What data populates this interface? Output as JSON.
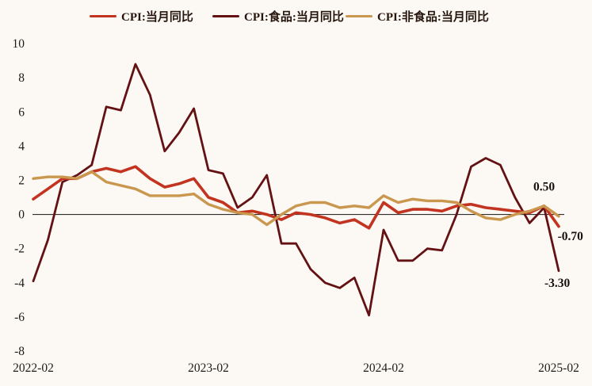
{
  "colors": {
    "background": "#fcf9f4",
    "axis_text": "#1c1c1c",
    "zero_line": "#2e2e2e",
    "annotation_text": "#17100a"
  },
  "chart_data": {
    "type": "line",
    "title": "",
    "xlabel": "",
    "ylabel": "",
    "legend_position": "top",
    "grid": false,
    "zero_line": true,
    "ylim": [
      -8,
      10
    ],
    "y_ticks": [
      10,
      8,
      6,
      4,
      2,
      0,
      -2,
      -4,
      -6,
      -8
    ],
    "x": [
      "2022-02",
      "2022-03",
      "2022-04",
      "2022-05",
      "2022-06",
      "2022-07",
      "2022-08",
      "2022-09",
      "2022-10",
      "2022-11",
      "2022-12",
      "2023-01",
      "2023-02",
      "2023-03",
      "2023-04",
      "2023-05",
      "2023-06",
      "2023-07",
      "2023-08",
      "2023-09",
      "2023-10",
      "2023-11",
      "2023-12",
      "2024-01",
      "2024-02",
      "2024-03",
      "2024-04",
      "2024-05",
      "2024-06",
      "2024-07",
      "2024-08",
      "2024-09",
      "2024-10",
      "2024-11",
      "2024-12",
      "2025-01",
      "2025-02"
    ],
    "x_ticks": [
      {
        "label": "2022-02",
        "month_index": 0
      },
      {
        "label": "2023-02",
        "month_index": 12
      },
      {
        "label": "2024-02",
        "month_index": 24
      },
      {
        "label": "2025-02",
        "month_index": 36
      }
    ],
    "series": [
      {
        "id": "cpi",
        "name": "CPI:当月同比",
        "color": "#c23320",
        "stroke_width": 3.6,
        "values": [
          0.9,
          1.5,
          2.1,
          2.1,
          2.5,
          2.7,
          2.5,
          2.8,
          2.1,
          1.6,
          1.8,
          2.1,
          1.0,
          0.7,
          0.1,
          0.2,
          0.0,
          -0.3,
          0.1,
          0.0,
          -0.2,
          -0.5,
          -0.3,
          -0.8,
          0.7,
          0.1,
          0.3,
          0.3,
          0.2,
          0.5,
          0.6,
          0.4,
          0.3,
          0.2,
          0.1,
          0.5,
          -0.7
        ]
      },
      {
        "id": "cpi-food",
        "name": "CPI:食品:当月同比",
        "color": "#641114",
        "stroke_width": 2.8,
        "values": [
          -3.9,
          -1.5,
          1.9,
          2.3,
          2.9,
          6.3,
          6.1,
          8.8,
          7.0,
          3.7,
          4.8,
          6.2,
          2.6,
          2.4,
          0.4,
          1.0,
          2.3,
          -1.7,
          -1.7,
          -3.2,
          -4.0,
          -4.3,
          -3.7,
          -5.9,
          -0.9,
          -2.7,
          -2.7,
          -2.0,
          -2.1,
          0.0,
          2.8,
          3.3,
          2.9,
          1.0,
          -0.5,
          0.4,
          -3.3
        ]
      },
      {
        "id": "cpi-nonfood",
        "name": "CPI:非食品:当月同比",
        "color": "#c9974d",
        "stroke_width": 3.4,
        "values": [
          2.1,
          2.2,
          2.2,
          2.1,
          2.5,
          1.9,
          1.7,
          1.5,
          1.1,
          1.1,
          1.1,
          1.2,
          0.6,
          0.3,
          0.1,
          0.0,
          -0.6,
          0.0,
          0.5,
          0.7,
          0.7,
          0.4,
          0.5,
          0.4,
          1.1,
          0.7,
          0.9,
          0.8,
          0.8,
          0.7,
          0.2,
          -0.2,
          -0.3,
          0.0,
          0.2,
          0.5,
          -0.1
        ]
      }
    ],
    "annotations": [
      {
        "text": "0.50",
        "x_month": 35.0,
        "y_value": 1.62
      },
      {
        "text": "-0.70",
        "x_month": 36.8,
        "y_value": -1.28
      },
      {
        "text": "-3.30",
        "x_month": 35.9,
        "y_value": -4.0
      }
    ]
  }
}
